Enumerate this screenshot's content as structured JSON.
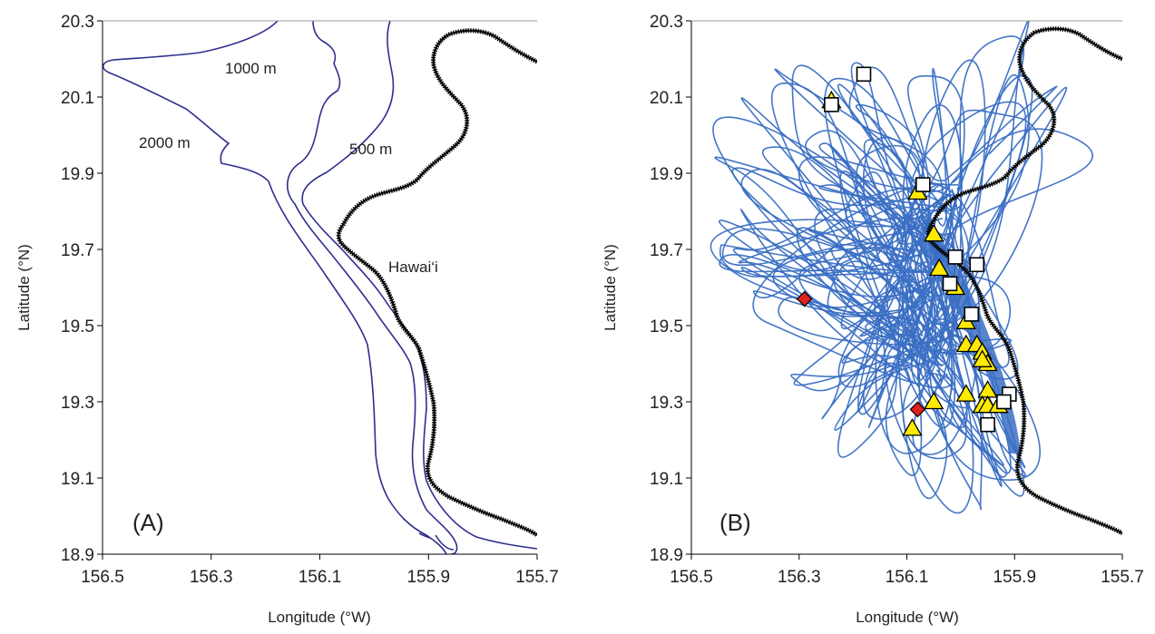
{
  "panels": [
    {
      "id": "A",
      "panel_label": "(A)",
      "xlabel": "Longitude (°W)",
      "ylabel": "Latitude (°N)",
      "xticks": [
        "156.5",
        "156.3",
        "156.1",
        "155.9",
        "155.7"
      ],
      "yticks": [
        "20.3",
        "20.1",
        "19.9",
        "19.7",
        "19.5",
        "19.3",
        "19.1",
        "18.9"
      ],
      "annotations": {
        "c1000": "1000 m",
        "c2000": "2000 m",
        "c500": "500 m",
        "island": "Hawai‘i"
      }
    },
    {
      "id": "B",
      "panel_label": "(B)",
      "xlabel": "Longitude (°W)",
      "ylabel": "Latitude (°N)",
      "xticks": [
        "156.5",
        "156.3",
        "156.1",
        "155.9",
        "155.7"
      ],
      "yticks": [
        "20.3",
        "20.1",
        "19.9",
        "19.7",
        "19.5",
        "19.3",
        "19.1",
        "18.9"
      ]
    }
  ],
  "map_extent": {
    "lon_west": 156.5,
    "lon_east": 155.7,
    "lat_south": 18.9,
    "lat_north": 20.3
  },
  "colors": {
    "contour": "#2e2e8f",
    "coastline": "#000000",
    "track": "#3a6fc4",
    "triangle": "#ffea00",
    "square": "#ffffff",
    "diamond": "#e02020"
  },
  "markers": {
    "triangles": [
      [
        156.24,
        20.09
      ],
      [
        156.08,
        19.85
      ],
      [
        156.05,
        19.74
      ],
      [
        156.04,
        19.65
      ],
      [
        156.01,
        19.6
      ],
      [
        155.99,
        19.51
      ],
      [
        155.99,
        19.45
      ],
      [
        155.97,
        19.45
      ],
      [
        155.96,
        19.43
      ],
      [
        155.95,
        19.4
      ],
      [
        155.95,
        19.33
      ],
      [
        155.99,
        19.32
      ],
      [
        156.05,
        19.3
      ],
      [
        155.96,
        19.29
      ],
      [
        155.95,
        19.29
      ],
      [
        155.93,
        19.29
      ],
      [
        156.09,
        19.23
      ],
      [
        155.96,
        19.41
      ]
    ],
    "squares": [
      [
        156.24,
        20.08
      ],
      [
        156.18,
        20.16
      ],
      [
        156.07,
        19.87
      ],
      [
        156.01,
        19.68
      ],
      [
        155.97,
        19.66
      ],
      [
        156.02,
        19.61
      ],
      [
        155.98,
        19.53
      ],
      [
        155.91,
        19.32
      ],
      [
        155.92,
        19.3
      ],
      [
        155.95,
        19.24
      ]
    ],
    "diamonds": [
      [
        156.29,
        19.57
      ],
      [
        156.08,
        19.28
      ]
    ]
  }
}
